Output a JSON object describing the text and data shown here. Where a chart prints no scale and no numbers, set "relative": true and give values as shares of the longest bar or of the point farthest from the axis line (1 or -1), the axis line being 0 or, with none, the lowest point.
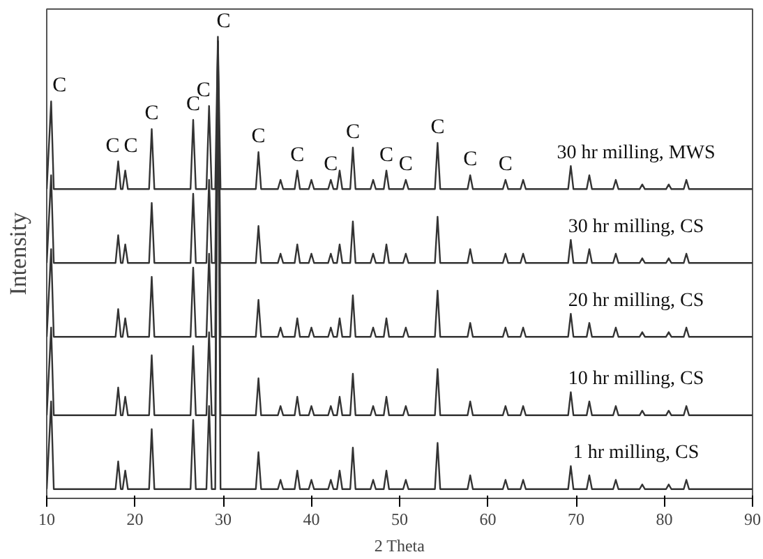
{
  "chart_data": {
    "type": "line",
    "relative": true,
    "xlabel": "2 Theta",
    "ylabel": "Intensity",
    "xlim": [
      10,
      90
    ],
    "xticks": [
      10,
      20,
      30,
      40,
      50,
      60,
      70,
      80,
      90
    ],
    "grid": false,
    "legend": false,
    "marker": "none",
    "line_style": "solid",
    "x": [
      10,
      10.5,
      10.8,
      17.8,
      18.1,
      18.4,
      18.6,
      18.9,
      19.2,
      21.6,
      21.9,
      22.2,
      26.3,
      26.6,
      26.9,
      28.1,
      28.4,
      28.7,
      29.1,
      29.4,
      29.7,
      33.7,
      34,
      34.3,
      36.2,
      36.5,
      36.8,
      38.1,
      38.4,
      38.7,
      39.7,
      40,
      40.3,
      41.9,
      42.2,
      42.5,
      42.9,
      43.2,
      43.5,
      44.4,
      44.7,
      45,
      46.7,
      47,
      47.3,
      48.2,
      48.5,
      48.8,
      50.4,
      50.7,
      51,
      54,
      54.3,
      54.6,
      57.7,
      58,
      58.3,
      61.7,
      62,
      62.3,
      63.7,
      64,
      64.3,
      69.1,
      69.4,
      69.7,
      71.2,
      71.5,
      71.8,
      74.2,
      74.5,
      74.8,
      77.2,
      77.5,
      77.8,
      80.2,
      80.5,
      80.8,
      82.2,
      82.5,
      82.8,
      90
    ],
    "series": [
      {
        "name": "30 hr milling, MWS",
        "color": "#333333",
        "values": [
          0.67,
          0.86,
          0.67,
          0.67,
          0.73,
          0.67,
          0.67,
          0.71,
          0.67,
          0.67,
          0.8,
          0.67,
          0.67,
          0.82,
          0.67,
          0.67,
          0.85,
          0.67,
          0.67,
          1.0,
          0.67,
          0.67,
          0.75,
          0.67,
          0.67,
          0.69,
          0.67,
          0.67,
          0.71,
          0.67,
          0.67,
          0.69,
          0.67,
          0.67,
          0.69,
          0.67,
          0.67,
          0.71,
          0.67,
          0.67,
          0.76,
          0.67,
          0.67,
          0.69,
          0.67,
          0.67,
          0.71,
          0.67,
          0.67,
          0.69,
          0.67,
          0.67,
          0.77,
          0.67,
          0.67,
          0.7,
          0.67,
          0.67,
          0.69,
          0.67,
          0.67,
          0.69,
          0.67,
          0.67,
          0.72,
          0.67,
          0.67,
          0.7,
          0.67,
          0.67,
          0.69,
          0.67,
          0.67,
          0.68,
          0.67,
          0.67,
          0.68,
          0.67,
          0.67,
          0.69,
          0.67,
          0.67
        ]
      },
      {
        "name": "30 hr milling, CS",
        "color": "#333333",
        "values": [
          0.51,
          0.7,
          0.51,
          0.51,
          0.57,
          0.51,
          0.51,
          0.55,
          0.51,
          0.51,
          0.64,
          0.51,
          0.51,
          0.66,
          0.51,
          0.51,
          0.69,
          0.51,
          0.51,
          0.99,
          0.51,
          0.51,
          0.59,
          0.51,
          0.51,
          0.53,
          0.51,
          0.51,
          0.55,
          0.51,
          0.51,
          0.53,
          0.51,
          0.51,
          0.53,
          0.51,
          0.51,
          0.55,
          0.51,
          0.51,
          0.6,
          0.51,
          0.51,
          0.53,
          0.51,
          0.51,
          0.55,
          0.51,
          0.51,
          0.53,
          0.51,
          0.51,
          0.61,
          0.51,
          0.51,
          0.54,
          0.51,
          0.51,
          0.53,
          0.51,
          0.51,
          0.53,
          0.51,
          0.51,
          0.56,
          0.51,
          0.51,
          0.54,
          0.51,
          0.51,
          0.53,
          0.51,
          0.51,
          0.52,
          0.51,
          0.51,
          0.52,
          0.51,
          0.51,
          0.53,
          0.51,
          0.51
        ]
      },
      {
        "name": "20 hr milling, CS",
        "color": "#333333",
        "values": [
          0.35,
          0.54,
          0.35,
          0.35,
          0.41,
          0.35,
          0.35,
          0.39,
          0.35,
          0.35,
          0.48,
          0.35,
          0.35,
          0.5,
          0.35,
          0.35,
          0.53,
          0.35,
          0.35,
          0.99,
          0.35,
          0.35,
          0.43,
          0.35,
          0.35,
          0.37,
          0.35,
          0.35,
          0.39,
          0.35,
          0.35,
          0.37,
          0.35,
          0.35,
          0.37,
          0.35,
          0.35,
          0.39,
          0.35,
          0.35,
          0.44,
          0.35,
          0.35,
          0.37,
          0.35,
          0.35,
          0.39,
          0.35,
          0.35,
          0.37,
          0.35,
          0.35,
          0.45,
          0.35,
          0.35,
          0.38,
          0.35,
          0.35,
          0.37,
          0.35,
          0.35,
          0.37,
          0.35,
          0.35,
          0.4,
          0.35,
          0.35,
          0.38,
          0.35,
          0.35,
          0.37,
          0.35,
          0.35,
          0.36,
          0.35,
          0.35,
          0.36,
          0.35,
          0.35,
          0.37,
          0.35,
          0.35
        ]
      },
      {
        "name": "10 hr milling, CS",
        "color": "#333333",
        "values": [
          0.18,
          0.37,
          0.18,
          0.18,
          0.24,
          0.18,
          0.18,
          0.22,
          0.18,
          0.18,
          0.31,
          0.18,
          0.18,
          0.33,
          0.18,
          0.18,
          0.36,
          0.18,
          0.18,
          0.99,
          0.18,
          0.18,
          0.26,
          0.18,
          0.18,
          0.2,
          0.18,
          0.18,
          0.22,
          0.18,
          0.18,
          0.2,
          0.18,
          0.18,
          0.2,
          0.18,
          0.18,
          0.22,
          0.18,
          0.18,
          0.27,
          0.18,
          0.18,
          0.2,
          0.18,
          0.18,
          0.22,
          0.18,
          0.18,
          0.2,
          0.18,
          0.18,
          0.28,
          0.18,
          0.18,
          0.21,
          0.18,
          0.18,
          0.2,
          0.18,
          0.18,
          0.2,
          0.18,
          0.18,
          0.23,
          0.18,
          0.18,
          0.21,
          0.18,
          0.18,
          0.2,
          0.18,
          0.18,
          0.19,
          0.18,
          0.18,
          0.19,
          0.18,
          0.18,
          0.2,
          0.18,
          0.18
        ]
      },
      {
        "name": "1 hr milling, CS",
        "color": "#333333",
        "values": [
          0.02,
          0.21,
          0.02,
          0.02,
          0.08,
          0.02,
          0.02,
          0.06,
          0.02,
          0.02,
          0.15,
          0.02,
          0.02,
          0.17,
          0.02,
          0.02,
          0.2,
          0.02,
          0.02,
          0.99,
          0.02,
          0.02,
          0.1,
          0.02,
          0.02,
          0.04,
          0.02,
          0.02,
          0.06,
          0.02,
          0.02,
          0.04,
          0.02,
          0.02,
          0.04,
          0.02,
          0.02,
          0.06,
          0.02,
          0.02,
          0.11,
          0.02,
          0.02,
          0.04,
          0.02,
          0.02,
          0.06,
          0.02,
          0.02,
          0.04,
          0.02,
          0.02,
          0.12,
          0.02,
          0.02,
          0.05,
          0.02,
          0.02,
          0.04,
          0.02,
          0.02,
          0.04,
          0.02,
          0.02,
          0.07,
          0.02,
          0.02,
          0.05,
          0.02,
          0.02,
          0.04,
          0.02,
          0.02,
          0.03,
          0.02,
          0.02,
          0.03,
          0.02,
          0.02,
          0.04,
          0.02,
          0.02
        ]
      }
    ],
    "annotations": [
      {
        "text": "C",
        "x": 10.5,
        "y": 0.86
      },
      {
        "text": "C",
        "x": 18.1,
        "y": 0.73
      },
      {
        "text": "C",
        "x": 18.9,
        "y": 0.71
      },
      {
        "text": "C",
        "x": 21.9,
        "y": 0.8
      },
      {
        "text": "C",
        "x": 26.6,
        "y": 0.82
      },
      {
        "text": "C",
        "x": 28.4,
        "y": 0.85
      },
      {
        "text": "C",
        "x": 29.4,
        "y": 1.0
      },
      {
        "text": "C",
        "x": 34,
        "y": 0.75
      },
      {
        "text": "C",
        "x": 38.4,
        "y": 0.71
      },
      {
        "text": "C",
        "x": 42.2,
        "y": 0.69
      },
      {
        "text": "C",
        "x": 44.7,
        "y": 0.76
      },
      {
        "text": "C",
        "x": 48.5,
        "y": 0.71
      },
      {
        "text": "C",
        "x": 50.7,
        "y": 0.69
      },
      {
        "text": "C",
        "x": 54.3,
        "y": 0.77
      },
      {
        "text": "C",
        "x": 58,
        "y": 0.7
      },
      {
        "text": "C",
        "x": 62,
        "y": 0.69
      }
    ]
  }
}
